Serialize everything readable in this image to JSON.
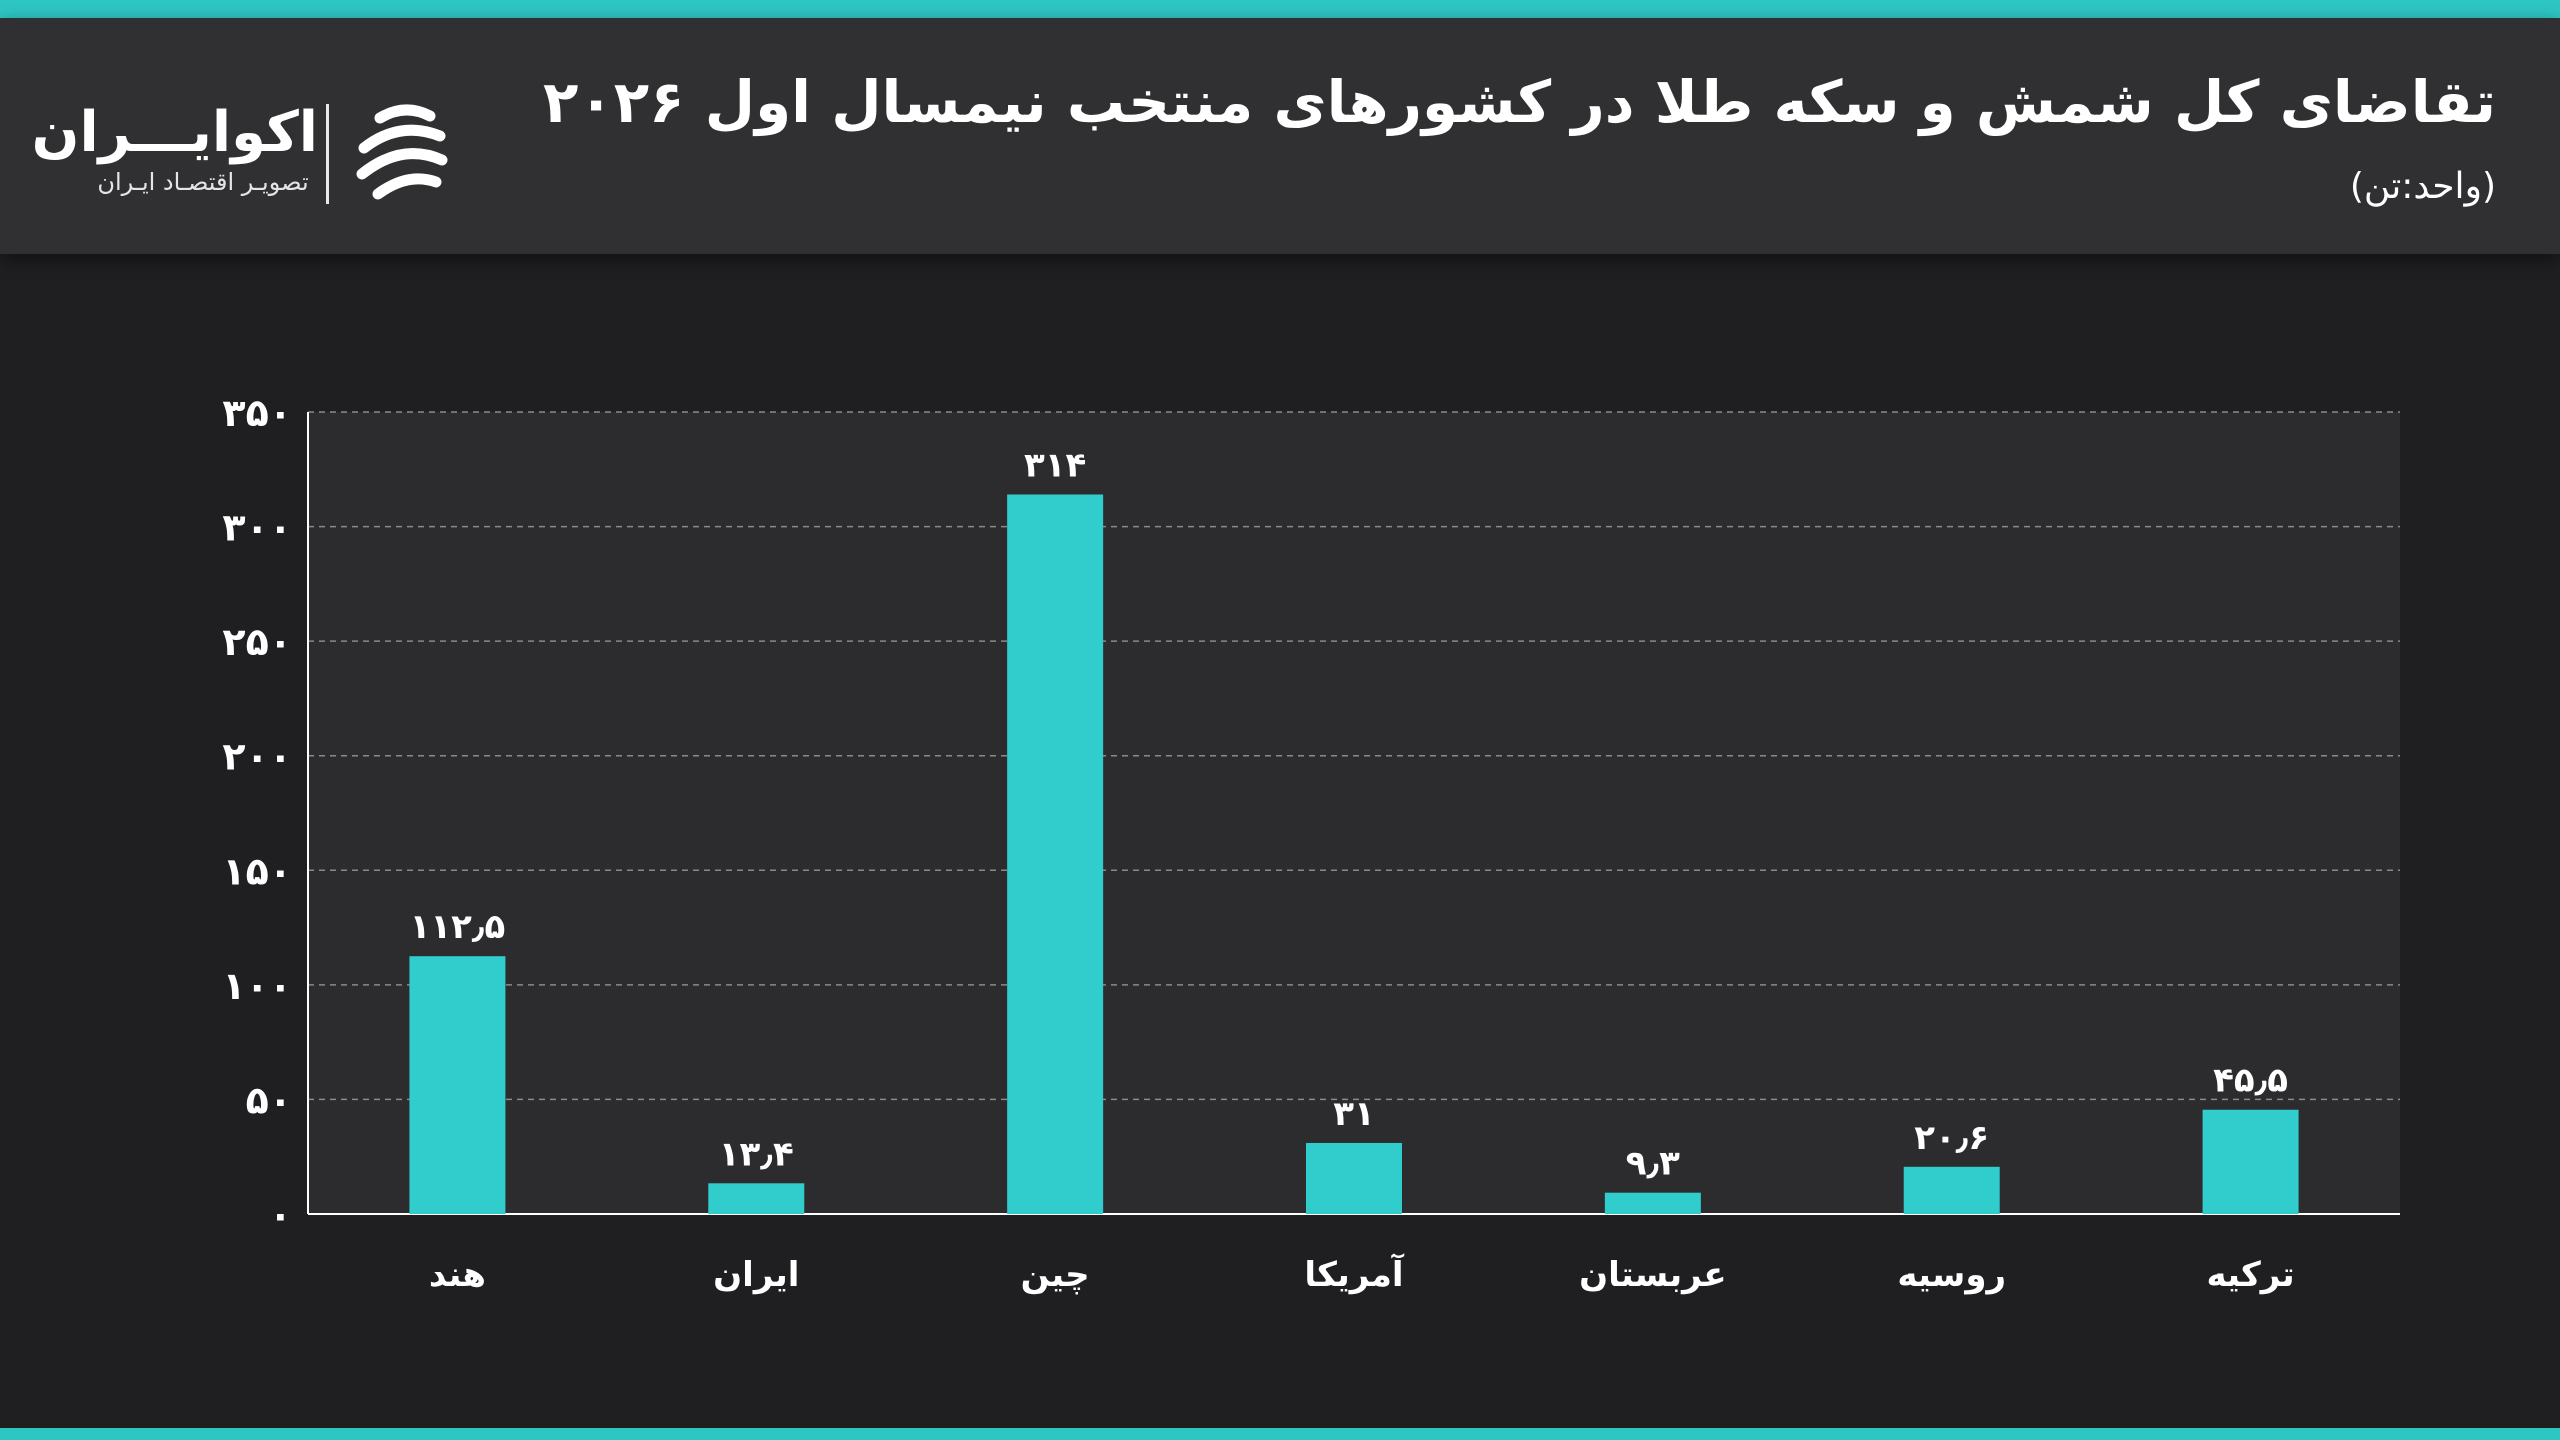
{
  "header": {
    "title": "تقاضای کل شمش و سکه طلا در کشورهای منتخب نیمسال اول ۲۰۲۶",
    "subtitle": "(واحد:تن)"
  },
  "brand": {
    "name": "اکوایـــران",
    "tagline": "تصویـر اقتصـاد ایـران",
    "accent": "#2ec6c3"
  },
  "chart_data": {
    "type": "bar",
    "categories": [
      "هند",
      "ایران",
      "چین",
      "آمریکا",
      "عربستان",
      "روسیه",
      "ترکیه"
    ],
    "values": [
      112.5,
      13.4,
      314,
      31,
      9.3,
      20.6,
      45.5
    ],
    "value_labels": [
      "۱۱۲٫۵",
      "۱۳٫۴",
      "۳۱۴",
      "۳۱",
      "۹٫۳",
      "۲۰٫۶",
      "۴۵٫۵"
    ],
    "ylim": [
      0,
      350
    ],
    "yticks": [
      0,
      50,
      100,
      150,
      200,
      250,
      300,
      350
    ],
    "ytick_labels": [
      "۰",
      "۵۰",
      "۱۰۰",
      "۱۵۰",
      "۲۰۰",
      "۲۵۰",
      "۳۰۰",
      "۳۵۰"
    ],
    "grid": true,
    "bar_color": "#31cdcd",
    "plot_bg": "#2c2b2d",
    "grid_color": "#8a8a8a"
  }
}
